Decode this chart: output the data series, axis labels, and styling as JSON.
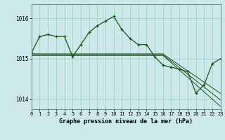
{
  "title": "Graphe pression niveau de la mer (hPa)",
  "bg_color": "#cde8e8",
  "grid_color": "#99cccc",
  "line_color": "#1a5218",
  "xlim": [
    0,
    23
  ],
  "ylim": [
    1013.75,
    1016.35
  ],
  "yticks": [
    1014,
    1015,
    1016
  ],
  "xtick_labels": [
    "0",
    "1",
    "2",
    "3",
    "4",
    "5",
    "6",
    "7",
    "8",
    "9",
    "10",
    "11",
    "12",
    "13",
    "14",
    "15",
    "16",
    "17",
    "18",
    "19",
    "20",
    "21",
    "22",
    "23"
  ],
  "series_high": [
    1015.15,
    1015.55,
    1015.6,
    1015.55,
    1015.55,
    1015.05,
    1015.35,
    1015.65,
    1015.82,
    1015.93,
    1016.05,
    1015.72,
    1015.5,
    1015.35,
    1015.35,
    1015.05,
    1014.84,
    1014.79,
    1014.74,
    1014.68,
    1014.15,
    1014.35,
    1014.88,
    1015.0
  ],
  "series_flat1": [
    1015.12,
    1015.12,
    1015.12,
    1015.12,
    1015.12,
    1015.12,
    1015.12,
    1015.12,
    1015.12,
    1015.12,
    1015.12,
    1015.12,
    1015.12,
    1015.12,
    1015.12,
    1015.12,
    1015.12,
    1014.98,
    1014.84,
    1014.7,
    1014.56,
    1014.42,
    1014.28,
    1014.14
  ],
  "series_flat2": [
    1015.1,
    1015.1,
    1015.1,
    1015.1,
    1015.1,
    1015.1,
    1015.1,
    1015.1,
    1015.1,
    1015.1,
    1015.1,
    1015.1,
    1015.1,
    1015.1,
    1015.1,
    1015.1,
    1015.1,
    1014.94,
    1014.78,
    1014.62,
    1014.46,
    1014.3,
    1014.14,
    1013.98
  ],
  "series_flat3": [
    1015.08,
    1015.08,
    1015.08,
    1015.08,
    1015.08,
    1015.08,
    1015.08,
    1015.08,
    1015.08,
    1015.08,
    1015.08,
    1015.08,
    1015.08,
    1015.08,
    1015.08,
    1015.08,
    1015.08,
    1014.9,
    1014.72,
    1014.54,
    1014.36,
    1014.18,
    1014.0,
    1013.82
  ]
}
